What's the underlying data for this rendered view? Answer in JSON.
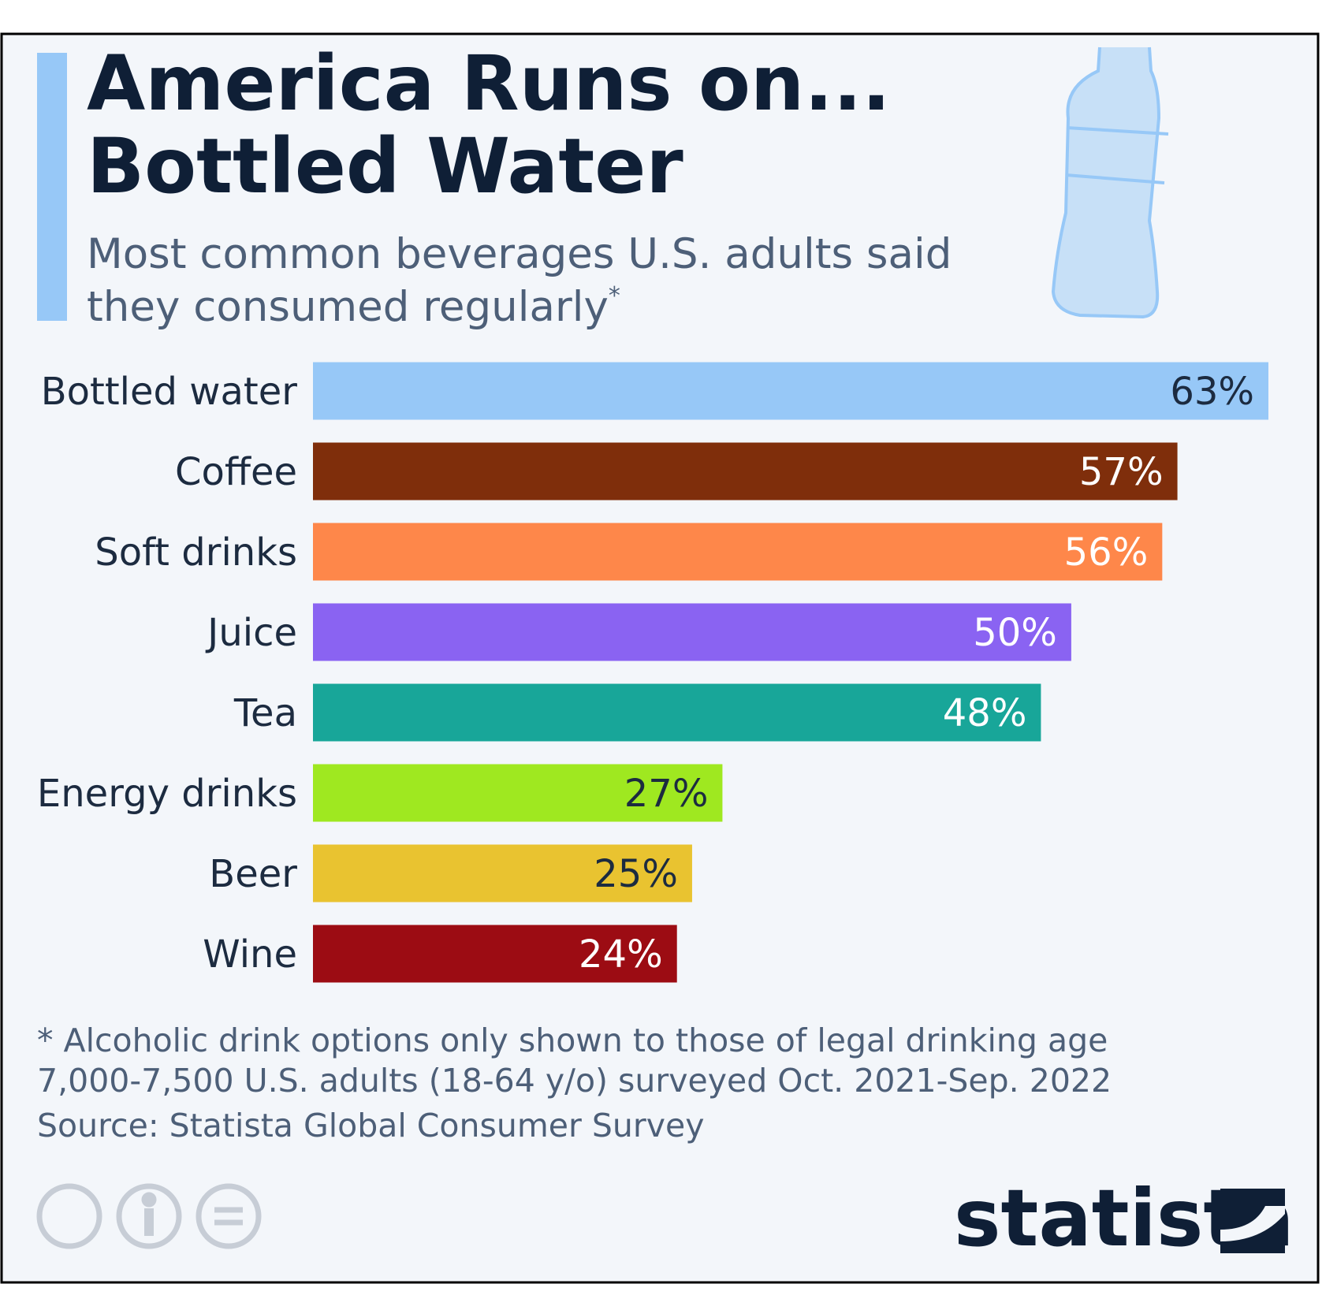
{
  "chart_data": {
    "type": "bar",
    "orientation": "horizontal",
    "title": [
      "America Runs on...",
      "Bottled Water"
    ],
    "subtitle": [
      "Most common beverages U.S. adults said",
      "they consumed regularly"
    ],
    "subtitle_mark": "*",
    "categories": [
      "Bottled water",
      "Coffee",
      "Soft drinks",
      "Juice",
      "Tea",
      "Energy drinks",
      "Beer",
      "Wine"
    ],
    "values": [
      63,
      57,
      56,
      50,
      48,
      27,
      25,
      24
    ],
    "value_labels": [
      "63%",
      "57%",
      "56%",
      "50%",
      "48%",
      "27%",
      "25%",
      "24%"
    ],
    "colors": [
      "#97c8f7",
      "#7f2e0b",
      "#fe874a",
      "#8a63f2",
      "#18a699",
      "#9fe820",
      "#e9c330",
      "#9c0c13"
    ],
    "label_colors": [
      "#1c2b40",
      "#ffffff",
      "#ffffff",
      "#ffffff",
      "#ffffff",
      "#1c2b40",
      "#1c2b40",
      "#ffffff"
    ],
    "notes": [
      "* Alcoholic drink options only shown to those of legal drinking age",
      "7,000-7,500 U.S. adults (18-64 y/o) surveyed Oct. 2021-Sep. 2022",
      "Source: Statista Global Consumer Survey"
    ],
    "brand": "statista"
  }
}
